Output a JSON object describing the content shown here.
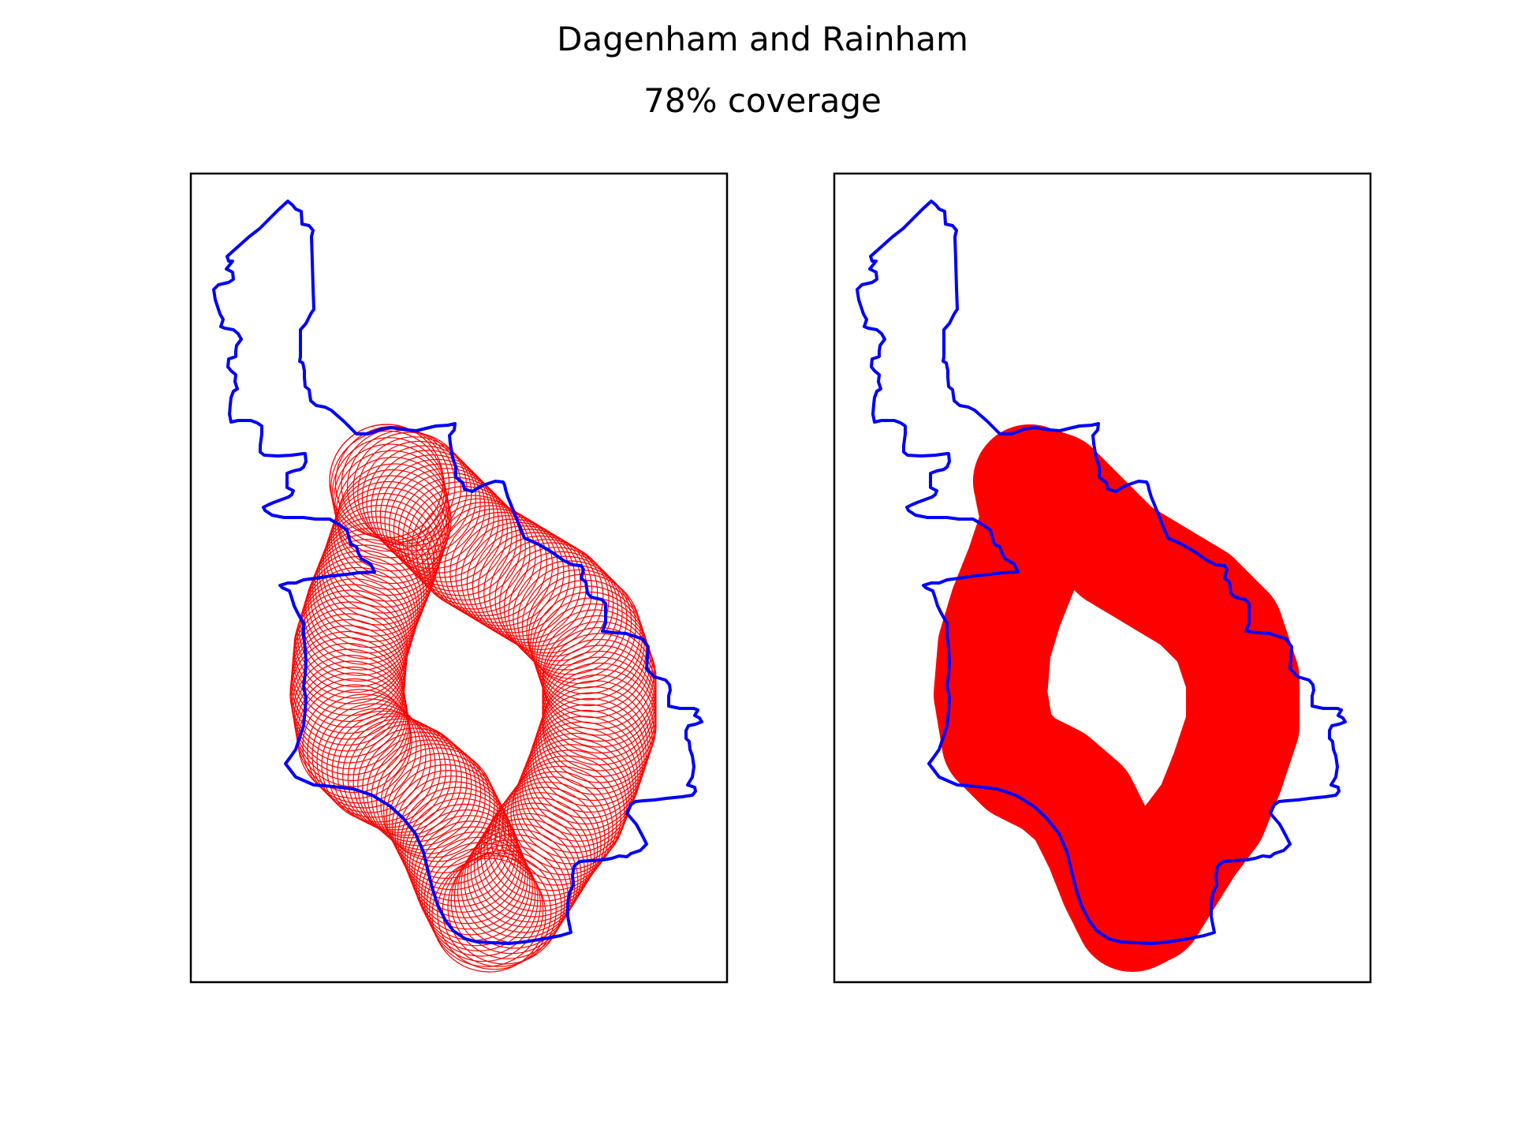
{
  "figure": {
    "title": "Dagenham and Rainham",
    "subtitle": "78% coverage"
  },
  "colors": {
    "boundary": "#0000ff",
    "circles": "#ff0000",
    "frame": "#000000",
    "background": "#ffffff"
  },
  "chart_data": [
    {
      "type": "scatter",
      "panel": "left",
      "style": "outlined circles",
      "grid": false,
      "axes_ticks": false,
      "legend": "none",
      "coverage_percent": 78
    },
    {
      "type": "scatter",
      "panel": "right",
      "style": "filled circles",
      "grid": false,
      "axes_ticks": false,
      "legend": "none",
      "coverage_percent": 78
    }
  ]
}
